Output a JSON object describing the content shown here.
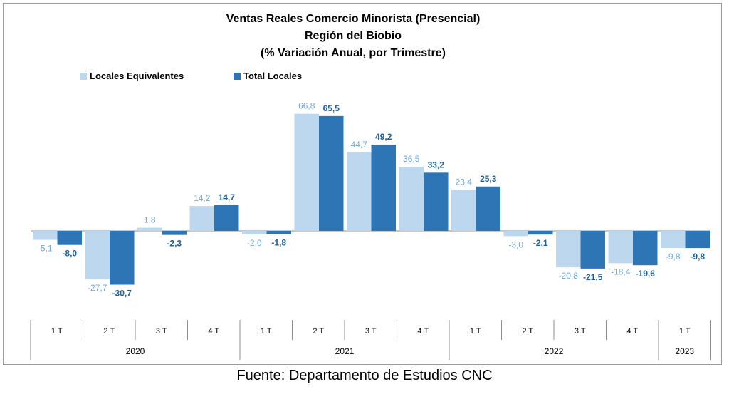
{
  "chart_data": {
    "type": "bar",
    "title_lines": [
      "Ventas Reales Comercio Minorista (Presencial)",
      "Región del Biobio",
      "(% Variación Anual, por Trimestre)"
    ],
    "categories": [
      "1 T",
      "2 T",
      "3 T",
      "4 T",
      "1 T",
      "2 T",
      "3 T",
      "4 T",
      "1 T",
      "2 T",
      "3 T",
      "4 T",
      "1 T"
    ],
    "groups": [
      {
        "label": "2020",
        "count": 4
      },
      {
        "label": "2021",
        "count": 4
      },
      {
        "label": "2022",
        "count": 4
      },
      {
        "label": "2023",
        "count": 1
      }
    ],
    "series": [
      {
        "name": "Locales Equivalentes",
        "color": "#bdd7ee",
        "values": [
          -5.1,
          -27.7,
          1.8,
          14.2,
          -2.0,
          66.8,
          44.7,
          36.5,
          23.4,
          -3.0,
          -20.8,
          -18.4,
          -9.8
        ],
        "labels": [
          "-5,1",
          "-27,7",
          "1,8",
          "14,2",
          "-2,0",
          "66,8",
          "44,7",
          "36,5",
          "23,4",
          "-3,0",
          "-20,8",
          "-18,4",
          "-9,8"
        ]
      },
      {
        "name": "Total Locales",
        "color": "#2e75b6",
        "values": [
          -8.0,
          -30.7,
          -2.3,
          14.7,
          -1.8,
          65.5,
          49.2,
          33.2,
          25.3,
          -2.1,
          -21.5,
          -19.6,
          -9.8
        ],
        "labels": [
          "-8,0",
          "-30,7",
          "-2,3",
          "14,7",
          "-1,8",
          "65,5",
          "49,2",
          "33,2",
          "25,3",
          "-2,1",
          "-21,5",
          "-19,6",
          "-9,8"
        ]
      }
    ],
    "legend_position": "top-left",
    "grid": false
  },
  "source": "Fuente: Departamento de Estudios CNC"
}
